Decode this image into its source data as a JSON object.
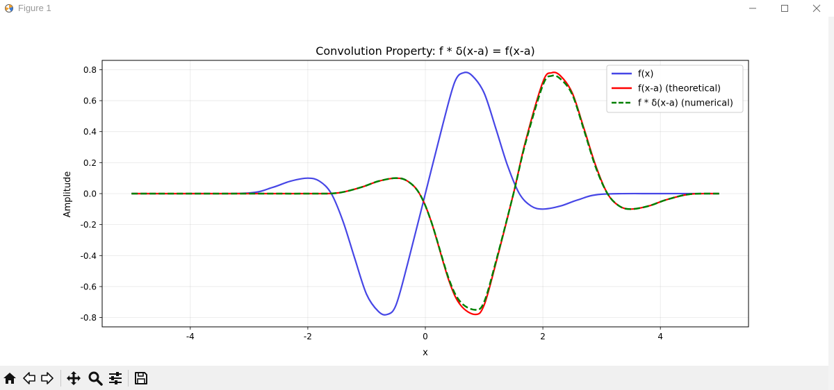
{
  "window": {
    "title": "Figure 1",
    "icon": "matplotlib-figure-icon"
  },
  "toolbar": {
    "tools": [
      "home-icon",
      "back-arrow-icon",
      "forward-arrow-icon",
      "pan-move-icon",
      "zoom-magnifier-icon",
      "configure-subplots-icon",
      "save-floppy-icon"
    ]
  },
  "chart_data": {
    "type": "line",
    "title": "Convolution Property: f * δ(x-a) = f(x-a)",
    "xlabel": "x",
    "ylabel": "Amplitude",
    "xlim": [
      -5.5,
      5.5
    ],
    "ylim": [
      -0.86,
      0.86
    ],
    "x_ticks": [
      -4,
      -2,
      0,
      2,
      4
    ],
    "x_tick_labels": [
      "-4",
      "-2",
      "0",
      "2",
      "4"
    ],
    "y_ticks": [
      -0.8,
      -0.6,
      -0.4,
      -0.2,
      0.0,
      0.2,
      0.4,
      0.6,
      0.8
    ],
    "y_tick_labels": [
      "-0.8",
      "-0.6",
      "-0.4",
      "-0.2",
      "0.0",
      "0.2",
      "0.4",
      "0.6",
      "0.8"
    ],
    "grid": true,
    "legend_position": "top-right",
    "x_range": [
      -5,
      5
    ],
    "series": [
      {
        "name": "f(x)",
        "color": "#4646e6",
        "style": "solid",
        "x": [
          -5.0,
          -4.0,
          -3.0,
          -2.6,
          -2.3,
          -2.0,
          -1.8,
          -1.6,
          -1.4,
          -1.2,
          -1.0,
          -0.8,
          -0.65,
          -0.5,
          -0.3,
          0.0,
          0.3,
          0.5,
          0.65,
          0.8,
          1.0,
          1.2,
          1.4,
          1.6,
          1.8,
          2.0,
          2.3,
          2.6,
          3.0,
          4.0,
          5.0
        ],
        "y": [
          0.0,
          0.0,
          0.004,
          0.04,
          0.08,
          0.1,
          0.08,
          0.0,
          -0.18,
          -0.42,
          -0.65,
          -0.76,
          -0.78,
          -0.72,
          -0.45,
          0.0,
          0.45,
          0.72,
          0.78,
          0.76,
          0.65,
          0.42,
          0.18,
          0.0,
          -0.08,
          -0.1,
          -0.08,
          -0.04,
          -0.004,
          0.0,
          0.0
        ]
      },
      {
        "name": "f(x-a) (theoretical)",
        "color": "#ff0000",
        "style": "solid",
        "x": [
          -5.0,
          -3.0,
          -2.0,
          -1.5,
          -1.1,
          -0.8,
          -0.5,
          -0.3,
          -0.1,
          0.1,
          0.4,
          0.6,
          0.85,
          1.0,
          1.2,
          1.5,
          1.7,
          2.0,
          2.15,
          2.3,
          2.5,
          2.7,
          2.9,
          3.1,
          3.3,
          3.5,
          3.8,
          4.1,
          4.5,
          5.0
        ],
        "y": [
          0.0,
          0.0,
          0.0,
          0.004,
          0.04,
          0.08,
          0.1,
          0.08,
          0.0,
          -0.18,
          -0.56,
          -0.72,
          -0.78,
          -0.72,
          -0.45,
          0.0,
          0.33,
          0.72,
          0.78,
          0.76,
          0.65,
          0.42,
          0.18,
          0.0,
          -0.08,
          -0.1,
          -0.08,
          -0.04,
          -0.004,
          0.0
        ]
      },
      {
        "name": "f * δ(x-a) (numerical)",
        "color": "#008000",
        "style": "dashed",
        "x": [
          -5.0,
          -3.0,
          -2.0,
          -1.5,
          -1.1,
          -0.8,
          -0.5,
          -0.3,
          -0.1,
          0.1,
          0.4,
          0.6,
          0.85,
          1.0,
          1.2,
          1.5,
          1.7,
          2.0,
          2.15,
          2.3,
          2.5,
          2.7,
          2.9,
          3.1,
          3.3,
          3.5,
          3.8,
          4.1,
          4.5,
          5.0
        ],
        "y": [
          0.0,
          0.0,
          0.0,
          0.004,
          0.04,
          0.08,
          0.1,
          0.08,
          0.0,
          -0.18,
          -0.55,
          -0.7,
          -0.75,
          -0.7,
          -0.44,
          0.0,
          0.32,
          0.7,
          0.76,
          0.74,
          0.64,
          0.41,
          0.17,
          0.0,
          -0.08,
          -0.1,
          -0.08,
          -0.04,
          -0.004,
          0.0
        ]
      }
    ]
  }
}
